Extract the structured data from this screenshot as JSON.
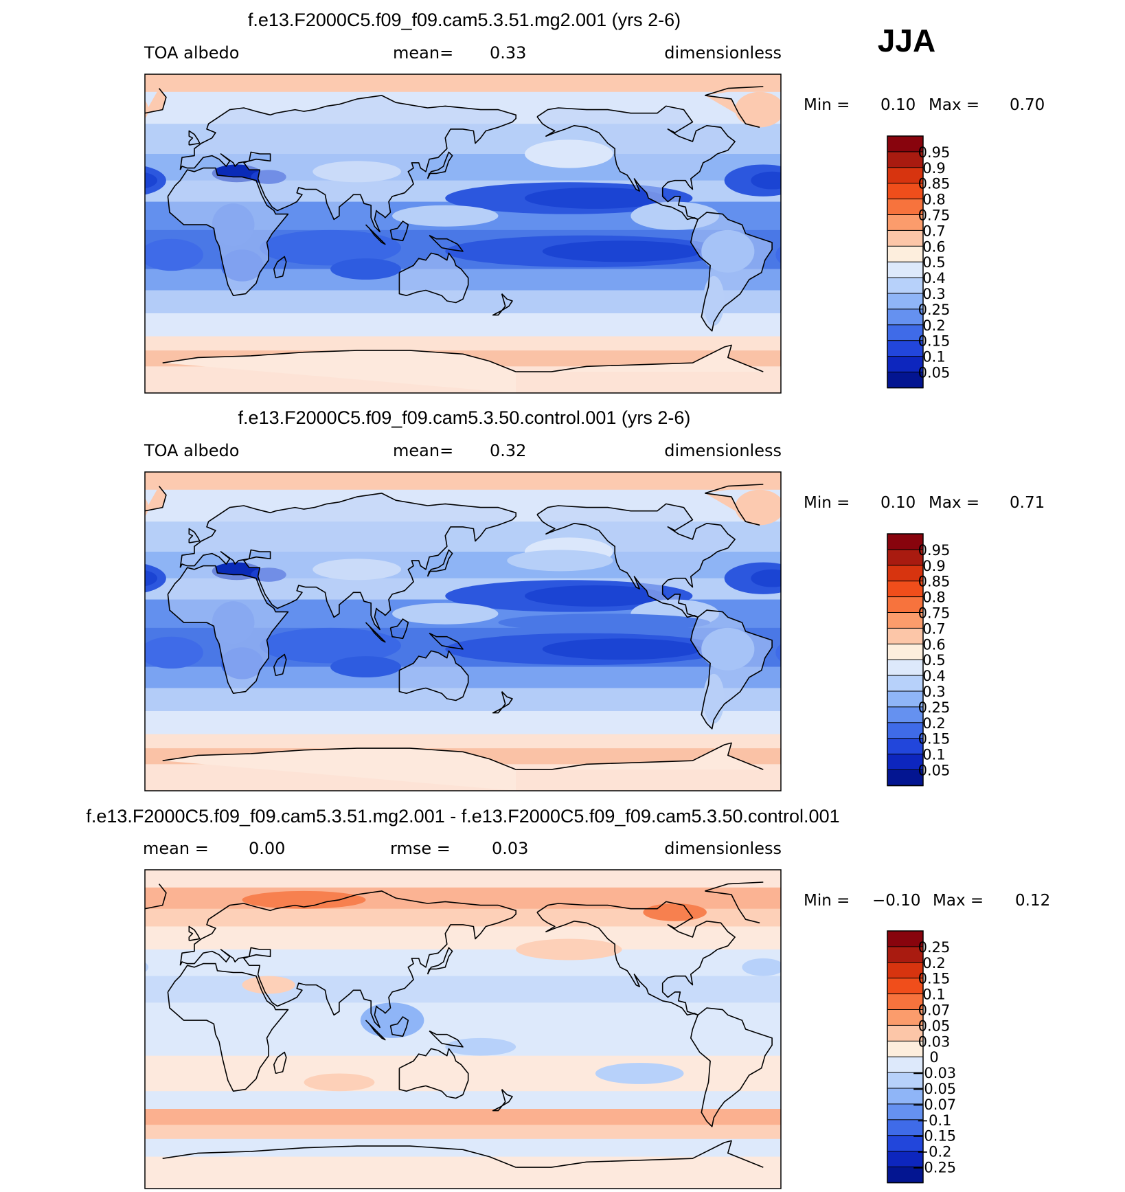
{
  "season": "JJA",
  "panels": [
    {
      "title": "f.e13.F2000C5.f09_f09.cam5.3.51.mg2.001 (yrs 2-6)",
      "left_label": "TOA albedo",
      "mid_label": "mean=",
      "mid_value": "0.33",
      "right_label": "dimensionless",
      "min_label": "Min =",
      "min_value": "0.10",
      "max_label": "Max =",
      "max_value": "0.70",
      "colorbar_labels": [
        "0.95",
        "0.9",
        "0.85",
        "0.8",
        "0.75",
        "0.7",
        "0.6",
        "0.5",
        "0.4",
        "0.3",
        "0.25",
        "0.2",
        "0.15",
        "0.1",
        "0.05"
      ],
      "field": "albedo_mg2"
    },
    {
      "title": "f.e13.F2000C5.f09_f09.cam5.3.50.control.001 (yrs 2-6)",
      "left_label": "TOA albedo",
      "mid_label": "mean=",
      "mid_value": "0.32",
      "right_label": "dimensionless",
      "min_label": "Min =",
      "min_value": "0.10",
      "max_label": "Max =",
      "max_value": "0.71",
      "colorbar_labels": [
        "0.95",
        "0.9",
        "0.85",
        "0.8",
        "0.75",
        "0.7",
        "0.6",
        "0.5",
        "0.4",
        "0.3",
        "0.25",
        "0.2",
        "0.15",
        "0.1",
        "0.05"
      ],
      "field": "albedo_control"
    },
    {
      "title": "f.e13.F2000C5.f09_f09.cam5.3.51.mg2.001 - f.e13.F2000C5.f09_f09.cam5.3.50.control.001",
      "left_label": "mean =",
      "left_value": "0.00",
      "mid_label": "rmse =",
      "mid_value": "0.03",
      "right_label": "dimensionless",
      "min_label": "Min =",
      "min_value": "−0.10",
      "max_label": "Max =",
      "max_value": "0.12",
      "colorbar_labels": [
        "0.25",
        "0.2",
        "0.15",
        "0.1",
        "0.07",
        "0.05",
        "0.03",
        "0",
        "−0.03",
        "−0.05",
        "−0.07",
        "−0.1",
        "−0.15",
        "−0.2",
        "−0.25"
      ],
      "field": "albedo_difference"
    }
  ],
  "colors": {
    "scale": [
      "#88040d",
      "#a91b10",
      "#d7340f",
      "#f04e1b",
      "#f7733d",
      "#fb9c6c",
      "#fcc6a8",
      "#fdeedd",
      "#dde9fb",
      "#b7d1fa",
      "#8fb5f7",
      "#6591f0",
      "#3f6be8",
      "#2246db",
      "#0d26be",
      "#031591",
      "#010a63"
    ],
    "field_tropics": "#3d6de3",
    "field_deep": "#0f35c8",
    "field_land": "#b9d0f7",
    "polar": "#fccab0",
    "coast": "#000000"
  }
}
